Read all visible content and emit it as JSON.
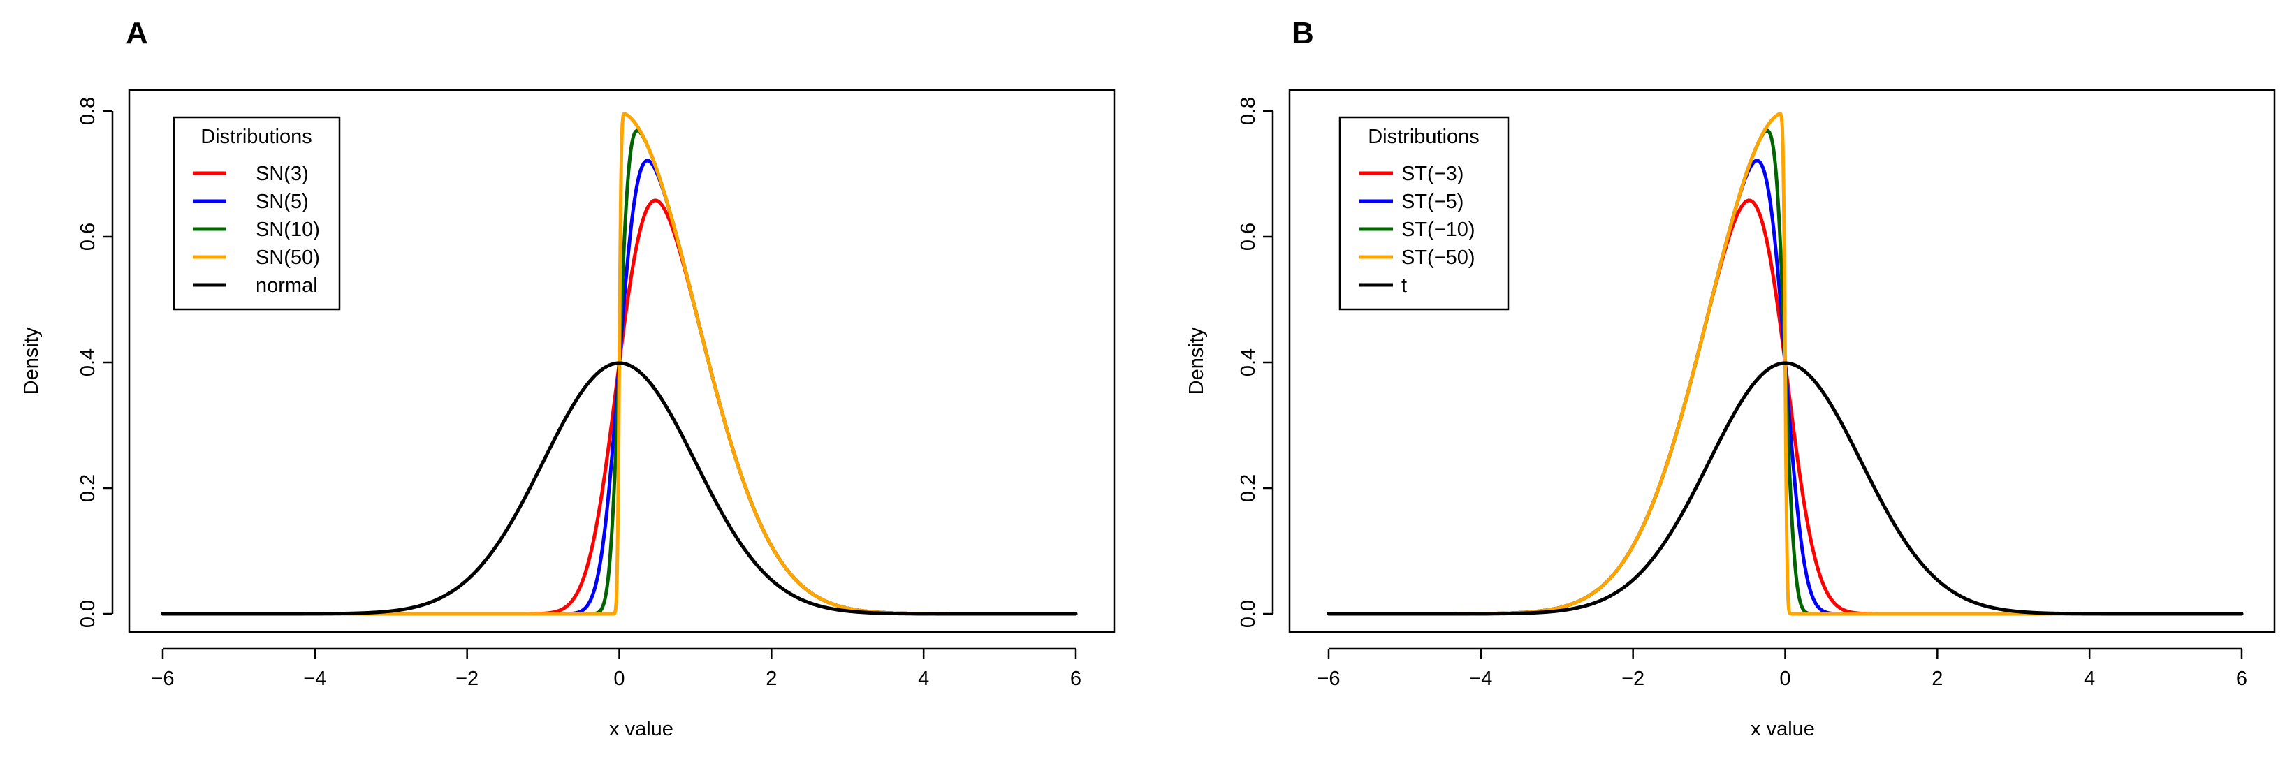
{
  "figure": {
    "panels": [
      {
        "label": "A",
        "xlabel": "x value",
        "ylabel": "Density",
        "legend_title": "Distributions"
      },
      {
        "label": "B",
        "xlabel": "x value",
        "ylabel": "Density",
        "legend_title": "Distributions"
      }
    ]
  },
  "chart_data": [
    {
      "type": "line",
      "title": "",
      "panel": "A",
      "xlabel": "x value",
      "ylabel": "Density",
      "xlim": [
        -6,
        6
      ],
      "ylim": [
        0,
        0.8
      ],
      "xticks": [
        -6,
        -4,
        -2,
        0,
        2,
        4,
        6
      ],
      "xtick_labels": [
        "−6",
        "−4",
        "−2",
        "0",
        "2",
        "4",
        "6"
      ],
      "yticks": [
        0.0,
        0.2,
        0.4,
        0.6,
        0.8
      ],
      "ytick_labels": [
        "0.0",
        "0.2",
        "0.4",
        "0.6",
        "0.8"
      ],
      "legend": {
        "title": "Distributions",
        "placement": "top-left"
      },
      "grid": false,
      "series": [
        {
          "name": "SN(3)",
          "color": "#ff0000",
          "family": "skew-normal",
          "alpha": 3,
          "peak": [
            0.5,
            0.66
          ]
        },
        {
          "name": "SN(5)",
          "color": "#0000ff",
          "family": "skew-normal",
          "alpha": 5,
          "peak": [
            0.37,
            0.72
          ]
        },
        {
          "name": "SN(10)",
          "color": "#006400",
          "family": "skew-normal",
          "alpha": 10,
          "peak": [
            0.23,
            0.77
          ]
        },
        {
          "name": "SN(50)",
          "color": "#ffa500",
          "family": "skew-normal",
          "alpha": 50,
          "peak": [
            0.05,
            0.8
          ]
        },
        {
          "name": "normal",
          "color": "#000000",
          "family": "normal",
          "alpha": 0,
          "peak": [
            0,
            0.4
          ]
        }
      ]
    },
    {
      "type": "line",
      "title": "",
      "panel": "B",
      "xlabel": "x value",
      "ylabel": "Density",
      "xlim": [
        -6,
        6
      ],
      "ylim": [
        0,
        0.8
      ],
      "xticks": [
        -6,
        -4,
        -2,
        0,
        2,
        4,
        6
      ],
      "xtick_labels": [
        "−6",
        "−4",
        "−2",
        "0",
        "2",
        "4",
        "6"
      ],
      "yticks": [
        0.0,
        0.2,
        0.4,
        0.6,
        0.8
      ],
      "ytick_labels": [
        "0.0",
        "0.2",
        "0.4",
        "0.6",
        "0.8"
      ],
      "legend": {
        "title": "Distributions",
        "placement": "top-left"
      },
      "grid": false,
      "series": [
        {
          "name": "ST(−3)",
          "color": "#ff0000",
          "family": "skew-t",
          "alpha": -3,
          "peak": [
            -0.5,
            0.66
          ]
        },
        {
          "name": "ST(−5)",
          "color": "#0000ff",
          "family": "skew-t",
          "alpha": -5,
          "peak": [
            -0.37,
            0.72
          ]
        },
        {
          "name": "ST(−10)",
          "color": "#006400",
          "family": "skew-t",
          "alpha": -10,
          "peak": [
            -0.23,
            0.77
          ]
        },
        {
          "name": "ST(−50)",
          "color": "#ffa500",
          "family": "skew-t",
          "alpha": -50,
          "peak": [
            -0.05,
            0.8
          ]
        },
        {
          "name": "t",
          "color": "#000000",
          "family": "t",
          "alpha": 0,
          "peak": [
            0,
            0.4
          ]
        }
      ]
    }
  ]
}
